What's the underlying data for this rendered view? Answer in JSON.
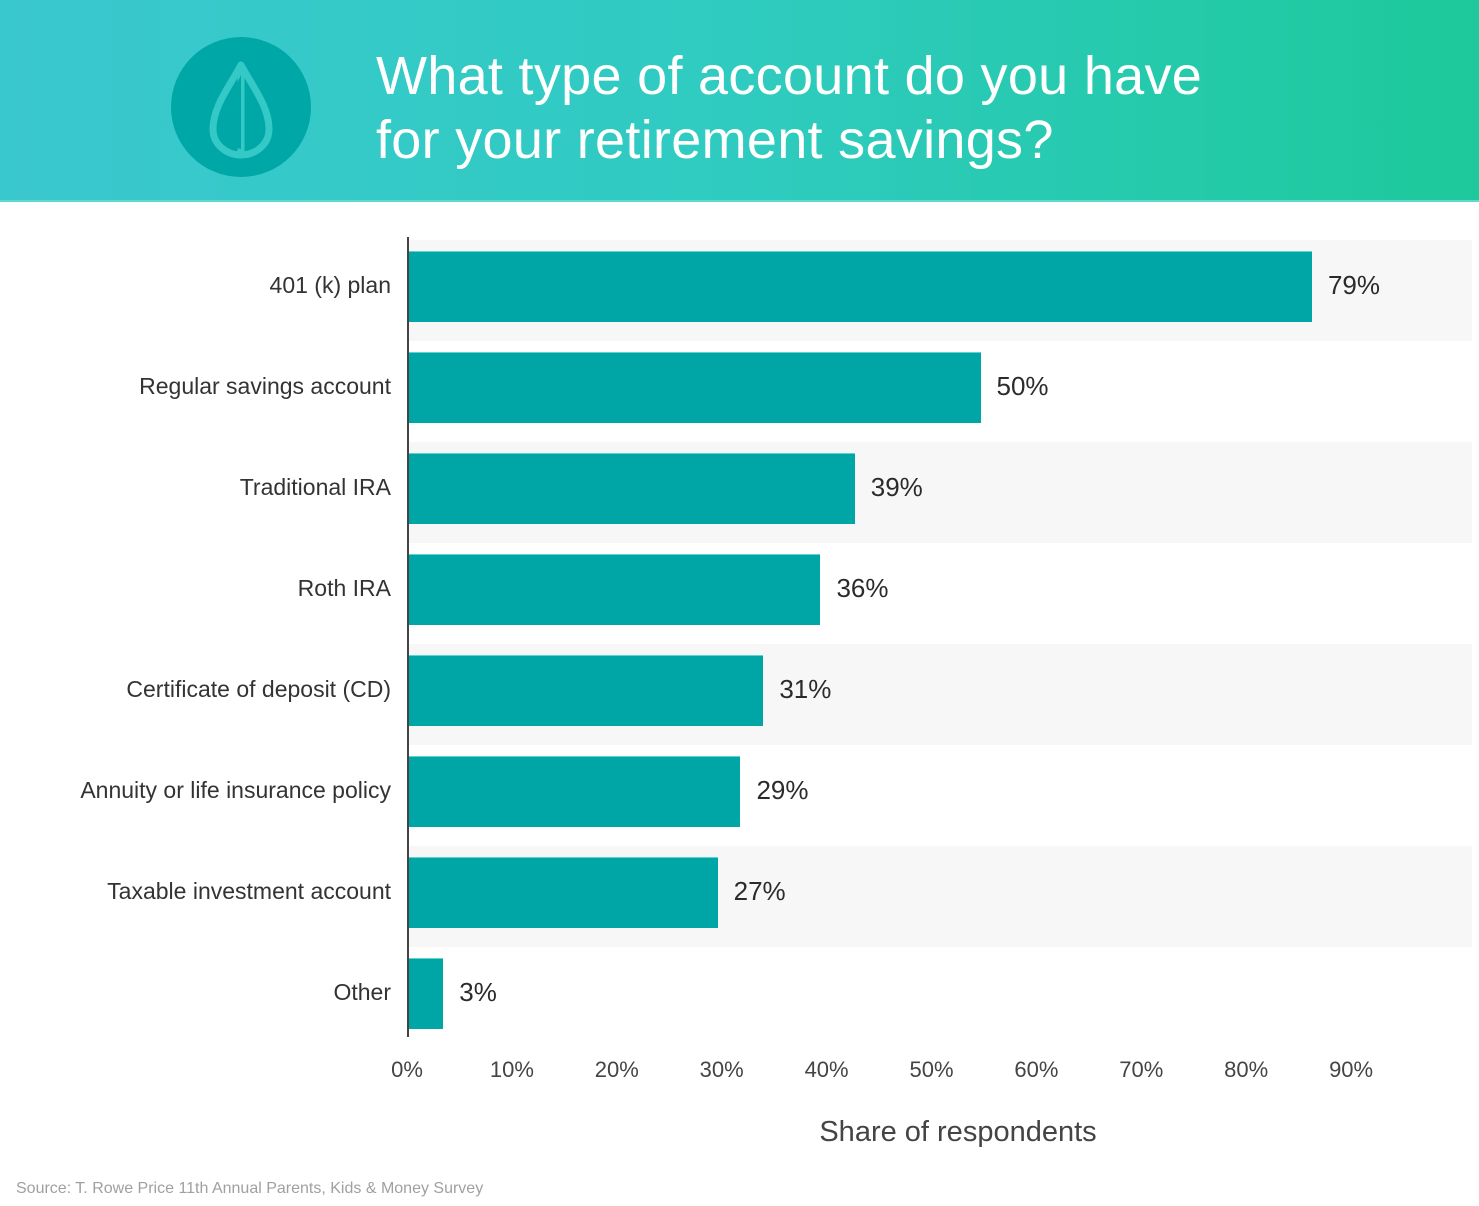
{
  "header": {
    "title_line1": "What type of account do you have",
    "title_line2": "for your retirement savings?",
    "logo_icon": "water-drop-icon",
    "gradient_start": "#3ac8cf",
    "gradient_end": "#1dc99b"
  },
  "colors": {
    "bar": "#00a6a6",
    "band": "#f7f7f7",
    "text": "#333333"
  },
  "chart_data": {
    "type": "bar",
    "orientation": "horizontal",
    "title": "What type of account do you have for your retirement savings?",
    "categories": [
      "401 (k) plan",
      "Regular savings account",
      "Traditional IRA",
      "Roth IRA",
      "Certificate of deposit (CD)",
      "Annuity or life insurance policy",
      "Taxable investment account",
      "Other"
    ],
    "values": [
      79,
      50,
      39,
      36,
      31,
      29,
      27,
      3
    ],
    "value_labels": [
      "79%",
      "50%",
      "39%",
      "36%",
      "31%",
      "29%",
      "27%",
      "3%"
    ],
    "xlabel": "Share of respondents",
    "ylabel": "",
    "xlim": [
      0,
      90
    ],
    "x_ticks": [
      "0%",
      "10%",
      "20%",
      "30%",
      "40%",
      "50%",
      "60%",
      "70%",
      "80%",
      "90%"
    ],
    "grid": false,
    "legend": null,
    "alternating_row_bands": true
  },
  "footer": {
    "source": "Source: T. Rowe Price 11th Annual Parents, Kids & Money Survey"
  }
}
